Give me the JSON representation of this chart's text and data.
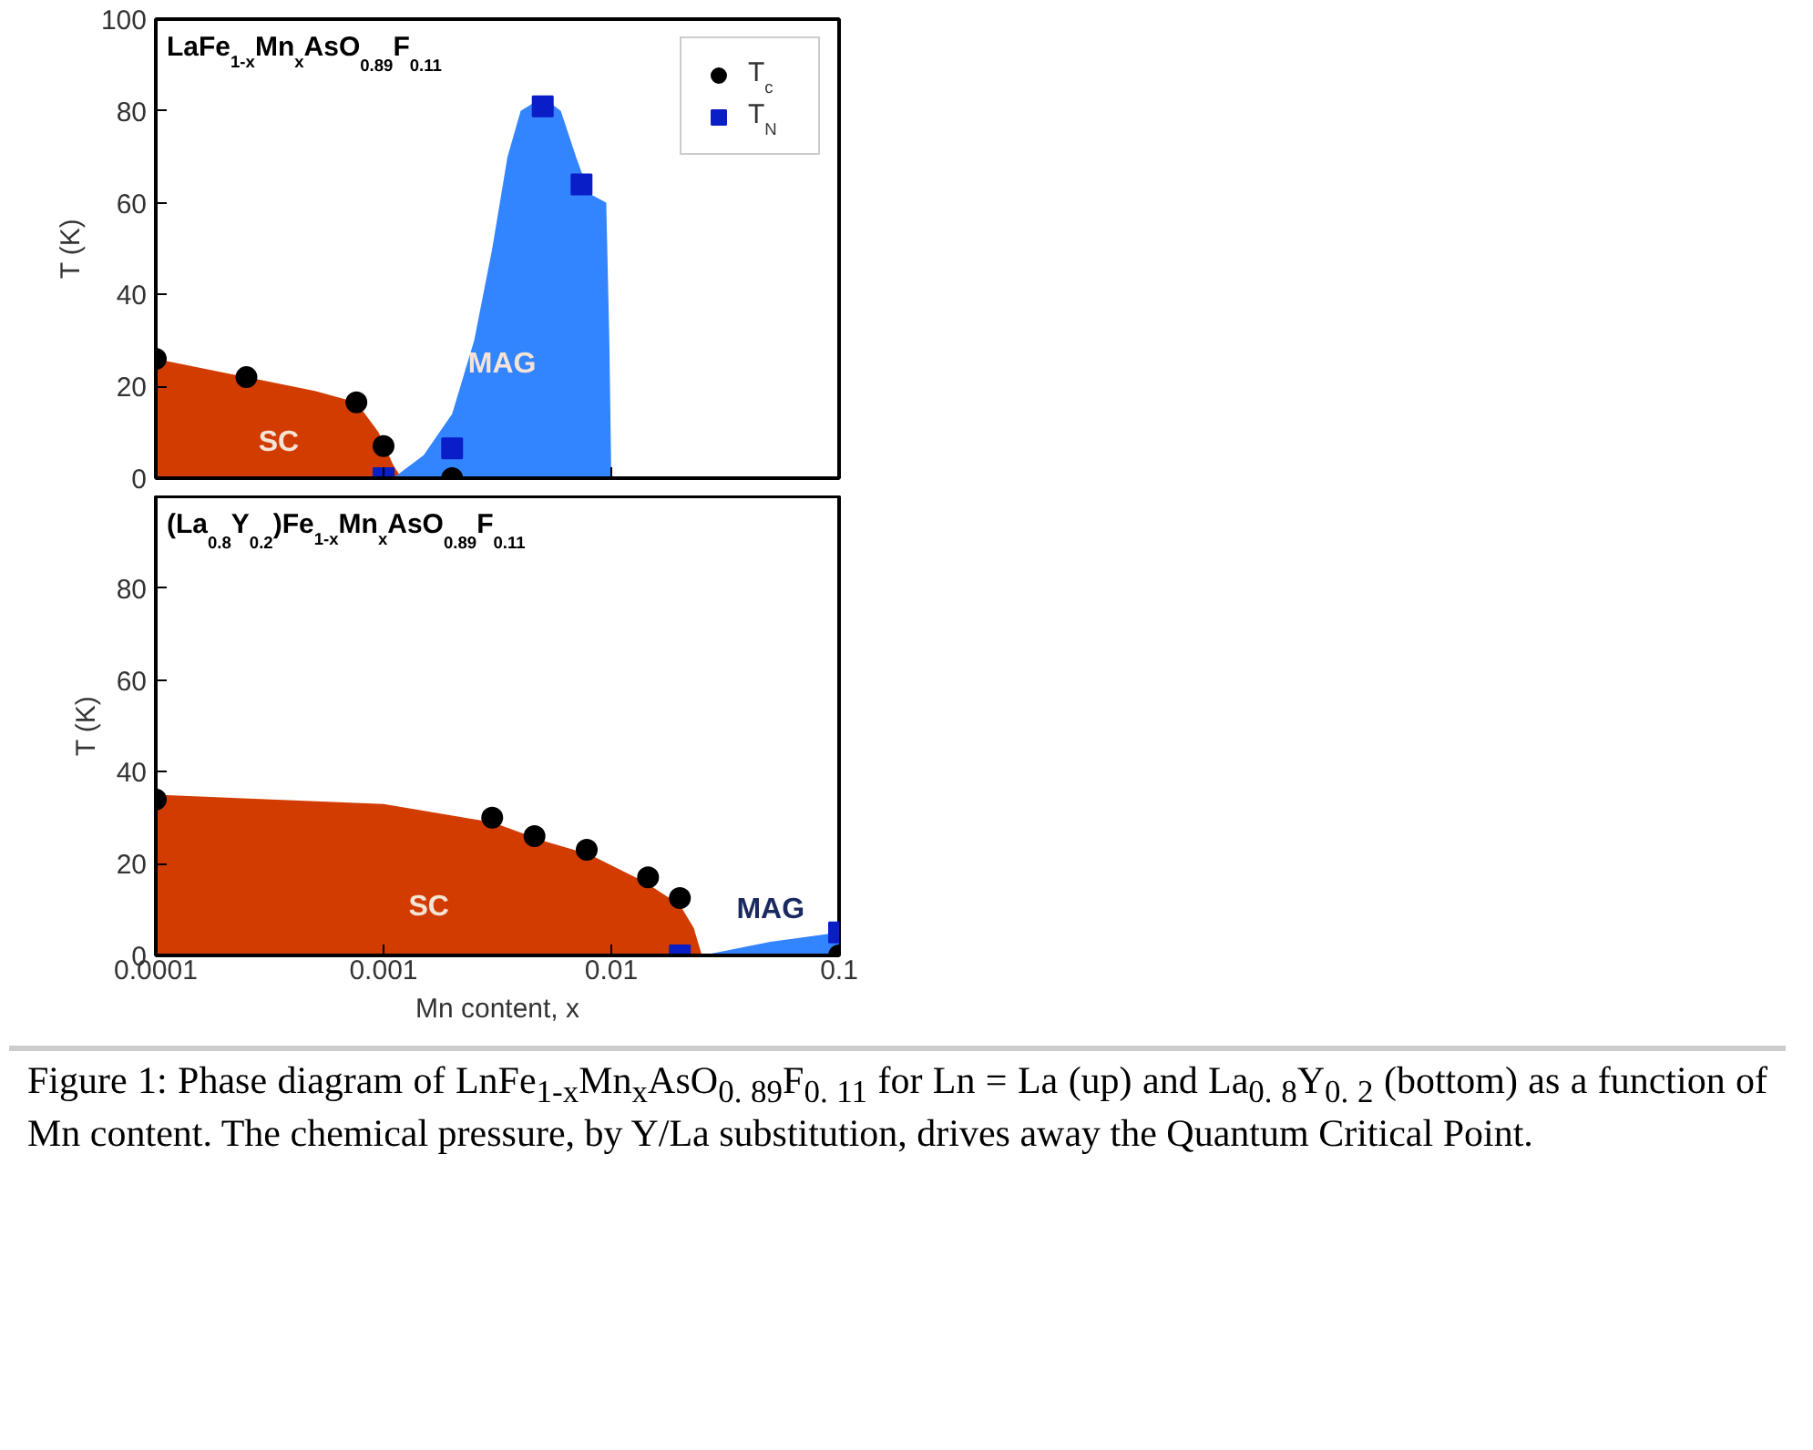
{
  "chart_data": [
    {
      "type": "area",
      "title": "LaFe$_{1-x}$Mn$_{x}$AsO$_{0.89}$F$_{0.11}$",
      "ylabel": "T (K)",
      "xlim": [
        0.0001,
        0.1
      ],
      "xticks": [
        0.0001,
        0.001,
        0.01,
        0.1
      ],
      "ylim": [
        0,
        100
      ],
      "yticks": [
        0,
        20,
        40,
        60,
        80,
        100
      ],
      "log": "x",
      "tick_labels": "y",
      "grid": false,
      "legend": "top right",
      "series": [
        {
          "type": "area",
          "color": "#d23c00",
          "x": [
            0.0001,
            0.00025,
            0.0005,
            0.00076,
            0.00095,
            0.0011,
            0.0012
          ],
          "values": [
            26,
            22,
            19,
            16.5,
            10,
            3,
            0
          ]
        },
        {
          "type": "area",
          "color": "#3384ff",
          "x": [
            0.0011,
            0.0015,
            0.002,
            0.0025,
            0.003,
            0.0035,
            0.004,
            0.005,
            0.006,
            0.007,
            0.008,
            0.0095,
            0.0098,
            0.01
          ],
          "values": [
            0,
            5,
            14,
            30,
            50,
            70,
            80,
            83,
            80,
            70,
            62,
            60,
            30,
            0
          ]
        },
        {
          "type": "scatter",
          "name": "T$_{c}$",
          "marker": "circle",
          "color": "#000000",
          "x": [
            0.0001,
            0.00025,
            0.00076,
            0.001,
            0.002
          ],
          "values": [
            26,
            22,
            16.5,
            7,
            0
          ]
        },
        {
          "type": "scatter",
          "name": "T$_{N}$",
          "marker": "square",
          "color": "#0a1ec8",
          "x": [
            0.001,
            0.002,
            0.005,
            0.0074
          ],
          "values": [
            0,
            6.5,
            81,
            64
          ]
        }
      ],
      "annotations": [
        "SC",
        "MAG"
      ]
    },
    {
      "type": "area",
      "title": "(La$_{0.8}$Y$_{0.2}$)Fe$_{1-x}$Mn$_{x}$AsO$_{0.89}$F$_{0.11}$",
      "xlabel": "Mn content, x",
      "ylabel": "T (K)",
      "xlim": [
        0.0001,
        0.1
      ],
      "xticks": [
        0.0001,
        0.001,
        0.01,
        0.1
      ],
      "ylim": [
        0,
        100
      ],
      "yticks": [
        0,
        20,
        40,
        60,
        80
      ],
      "log": "x",
      "grid": false,
      "series": [
        {
          "type": "area",
          "color": "#d23c00",
          "x": [
            0.0001,
            0.001,
            0.003,
            0.005,
            0.008,
            0.014,
            0.02,
            0.023,
            0.025
          ],
          "values": [
            35,
            33,
            29,
            25,
            22,
            16,
            11,
            6,
            0
          ]
        },
        {
          "type": "area",
          "color": "#3384ff",
          "x": [
            0.025,
            0.05,
            0.1
          ],
          "values": [
            0,
            3,
            5
          ]
        },
        {
          "type": "scatter",
          "marker": "circle",
          "color": "#000000",
          "x": [
            0.0001,
            0.003,
            0.0046,
            0.0078,
            0.0145,
            0.02,
            0.1
          ],
          "values": [
            34,
            30,
            26,
            23,
            17,
            12.5,
            0
          ]
        },
        {
          "type": "scatter",
          "marker": "square",
          "color": "#0a1ec8",
          "x": [
            0.02,
            0.1
          ],
          "values": [
            0,
            5
          ]
        }
      ],
      "annotations": [
        "SC",
        "MAG",
        "Figure 1: Phase diagram of LnFe$_{1-x}$Mn$_{x}$AsO$_{0. 89}$F$_{0. 11}$ for Ln = La (up) and La$_{0. 8}$Y$_{0. 2}$ (bottom) as a function of Mn content. The chemical pressure, by Y/La substitution, drives away the Quantum Critical Point."
      ]
    }
  ]
}
